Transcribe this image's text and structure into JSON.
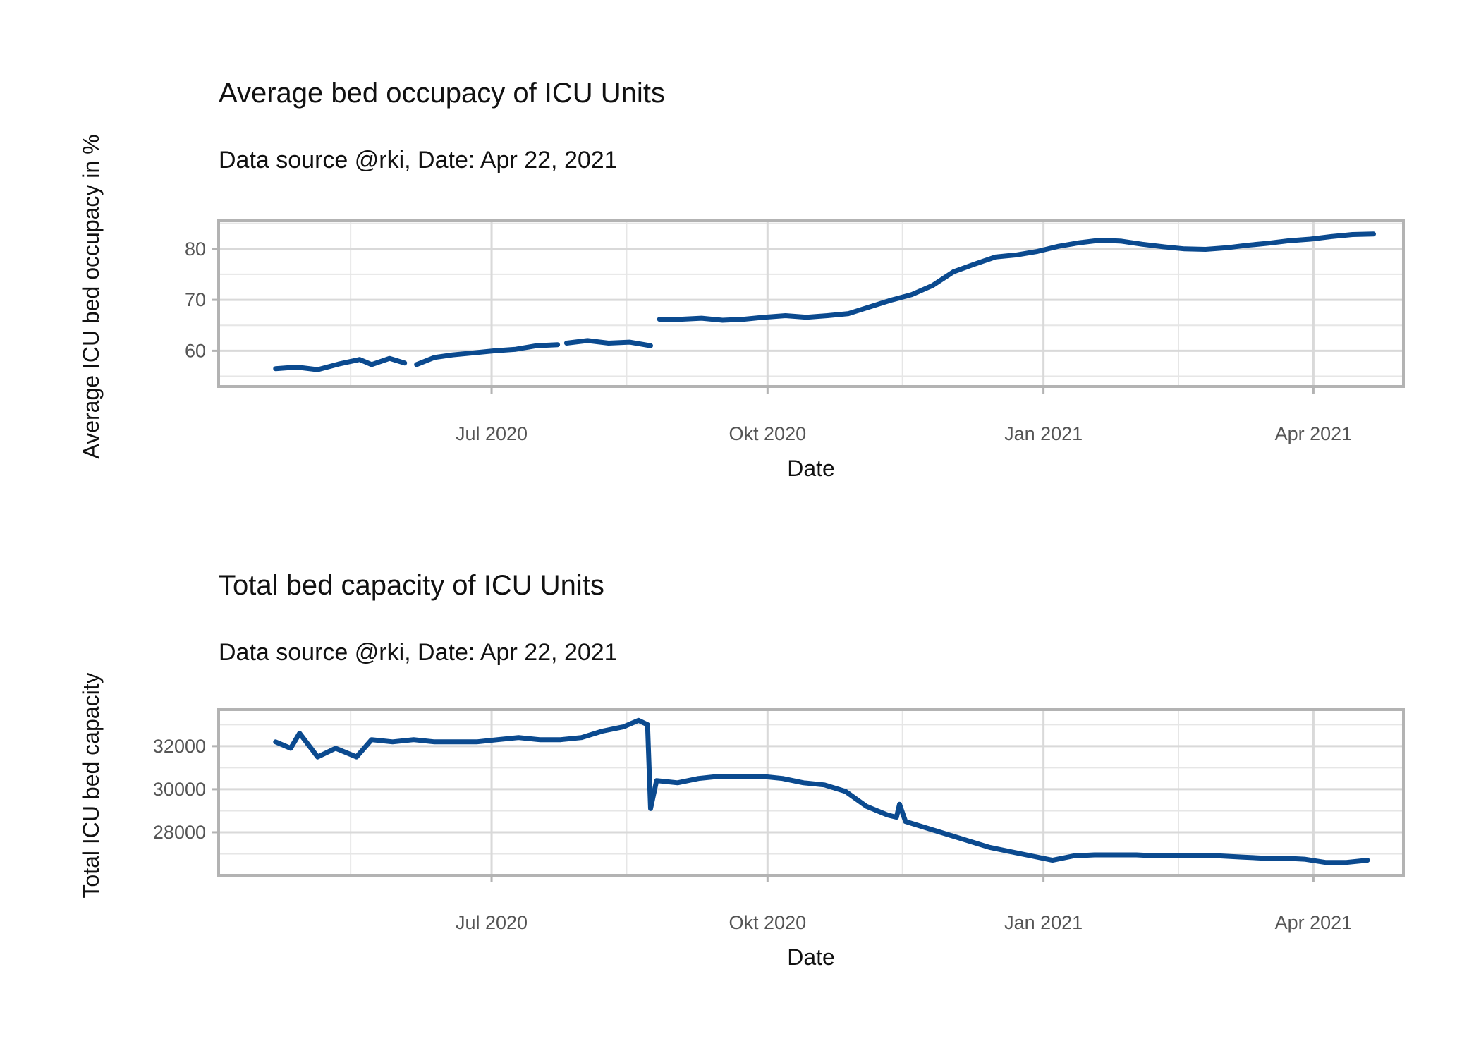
{
  "line_color": "#0b4a8f",
  "chart_data": [
    {
      "type": "line",
      "title": "Average bed occupacy of ICU Units",
      "subtitle": "Data source @rki, Date: Apr 22, 2021",
      "xlabel": "Date",
      "ylabel": "Average ICU bed occupacy in %",
      "x_ticks": [
        {
          "date": "2020-07-01",
          "label": "Jul 2020"
        },
        {
          "date": "2020-10-01",
          "label": "Okt 2020"
        },
        {
          "date": "2021-01-01",
          "label": "Jan 2021"
        },
        {
          "date": "2021-04-01",
          "label": "Apr 2021"
        }
      ],
      "x_minor_ticks": [
        "2020-05-15",
        "2020-08-15",
        "2020-11-15",
        "2021-02-15"
      ],
      "y_ticks": [
        60,
        70,
        80
      ],
      "xlim": [
        "2020-04-01",
        "2021-05-01"
      ],
      "ylim": [
        53,
        85.5
      ],
      "grid": true,
      "series": [
        {
          "segments": [
            [
              [
                "2020-04-20",
                56.5
              ],
              [
                "2020-04-27",
                56.8
              ],
              [
                "2020-05-04",
                56.3
              ],
              [
                "2020-05-11",
                57.4
              ],
              [
                "2020-05-18",
                58.3
              ],
              [
                "2020-05-22",
                57.3
              ],
              [
                "2020-05-28",
                58.5
              ],
              [
                "2020-06-02",
                57.6
              ]
            ],
            [
              [
                "2020-06-06",
                57.3
              ],
              [
                "2020-06-12",
                58.7
              ],
              [
                "2020-06-18",
                59.2
              ],
              [
                "2020-06-25",
                59.6
              ],
              [
                "2020-07-02",
                60.0
              ],
              [
                "2020-07-09",
                60.3
              ],
              [
                "2020-07-16",
                61.0
              ],
              [
                "2020-07-23",
                61.2
              ]
            ],
            [
              [
                "2020-07-26",
                61.5
              ],
              [
                "2020-08-02",
                62.0
              ],
              [
                "2020-08-09",
                61.5
              ],
              [
                "2020-08-16",
                61.7
              ],
              [
                "2020-08-23",
                61.0
              ]
            ],
            [
              [
                "2020-08-26",
                66.2
              ],
              [
                "2020-09-02",
                66.2
              ],
              [
                "2020-09-09",
                66.4
              ],
              [
                "2020-09-16",
                66.0
              ],
              [
                "2020-09-23",
                66.2
              ],
              [
                "2020-09-30",
                66.6
              ],
              [
                "2020-10-07",
                66.9
              ],
              [
                "2020-10-14",
                66.6
              ],
              [
                "2020-10-21",
                66.9
              ],
              [
                "2020-10-28",
                67.3
              ],
              [
                "2020-11-04",
                68.6
              ],
              [
                "2020-11-11",
                69.9
              ],
              [
                "2020-11-18",
                71.0
              ],
              [
                "2020-11-25",
                72.8
              ],
              [
                "2020-12-02",
                75.5
              ],
              [
                "2020-12-09",
                77.0
              ],
              [
                "2020-12-16",
                78.4
              ],
              [
                "2020-12-23",
                78.8
              ],
              [
                "2020-12-30",
                79.5
              ],
              [
                "2021-01-06",
                80.5
              ],
              [
                "2021-01-13",
                81.2
              ],
              [
                "2021-01-20",
                81.7
              ],
              [
                "2021-01-27",
                81.5
              ],
              [
                "2021-02-03",
                80.9
              ],
              [
                "2021-02-10",
                80.4
              ],
              [
                "2021-02-17",
                80.0
              ],
              [
                "2021-02-24",
                79.9
              ],
              [
                "2021-03-03",
                80.2
              ],
              [
                "2021-03-10",
                80.7
              ],
              [
                "2021-03-17",
                81.1
              ],
              [
                "2021-03-24",
                81.6
              ],
              [
                "2021-03-31",
                81.9
              ],
              [
                "2021-04-07",
                82.4
              ],
              [
                "2021-04-14",
                82.8
              ],
              [
                "2021-04-21",
                82.9
              ]
            ]
          ]
        }
      ]
    },
    {
      "type": "line",
      "title": "Total bed capacity of ICU Units",
      "subtitle": "Data source @rki, Date: Apr 22, 2021",
      "xlabel": "Date",
      "ylabel": "Total ICU bed capacity",
      "x_ticks": [
        {
          "date": "2020-07-01",
          "label": "Jul 2020"
        },
        {
          "date": "2020-10-01",
          "label": "Okt 2020"
        },
        {
          "date": "2021-01-01",
          "label": "Jan 2021"
        },
        {
          "date": "2021-04-01",
          "label": "Apr 2021"
        }
      ],
      "x_minor_ticks": [
        "2020-05-15",
        "2020-08-15",
        "2020-11-15",
        "2021-02-15"
      ],
      "y_ticks": [
        28000,
        30000,
        32000
      ],
      "xlim": [
        "2020-04-01",
        "2021-05-01"
      ],
      "ylim": [
        26000,
        33700
      ],
      "grid": true,
      "series": [
        {
          "segments": [
            [
              [
                "2020-04-20",
                32200
              ],
              [
                "2020-04-25",
                31900
              ],
              [
                "2020-04-28",
                32600
              ],
              [
                "2020-05-04",
                31500
              ],
              [
                "2020-05-10",
                31900
              ],
              [
                "2020-05-17",
                31500
              ],
              [
                "2020-05-22",
                32300
              ],
              [
                "2020-05-29",
                32200
              ],
              [
                "2020-06-05",
                32300
              ],
              [
                "2020-06-12",
                32200
              ],
              [
                "2020-06-19",
                32200
              ],
              [
                "2020-06-26",
                32200
              ],
              [
                "2020-07-03",
                32300
              ],
              [
                "2020-07-10",
                32400
              ],
              [
                "2020-07-17",
                32300
              ],
              [
                "2020-07-24",
                32300
              ],
              [
                "2020-07-31",
                32400
              ],
              [
                "2020-08-07",
                32700
              ],
              [
                "2020-08-14",
                32900
              ],
              [
                "2020-08-19",
                33200
              ],
              [
                "2020-08-22",
                33000
              ],
              [
                "2020-08-23",
                29100
              ],
              [
                "2020-08-25",
                30400
              ],
              [
                "2020-09-01",
                30300
              ],
              [
                "2020-09-08",
                30500
              ],
              [
                "2020-09-15",
                30600
              ],
              [
                "2020-09-22",
                30600
              ],
              [
                "2020-09-29",
                30600
              ],
              [
                "2020-10-06",
                30500
              ],
              [
                "2020-10-13",
                30300
              ],
              [
                "2020-10-20",
                30200
              ],
              [
                "2020-10-27",
                29900
              ],
              [
                "2020-11-03",
                29200
              ],
              [
                "2020-11-10",
                28800
              ],
              [
                "2020-11-13",
                28700
              ],
              [
                "2020-11-14",
                29300
              ],
              [
                "2020-11-16",
                28500
              ],
              [
                "2020-11-23",
                28200
              ],
              [
                "2020-11-30",
                27900
              ],
              [
                "2020-12-07",
                27600
              ],
              [
                "2020-12-14",
                27300
              ],
              [
                "2020-12-21",
                27100
              ],
              [
                "2020-12-28",
                26900
              ],
              [
                "2021-01-04",
                26700
              ],
              [
                "2021-01-11",
                26900
              ],
              [
                "2021-01-18",
                26950
              ],
              [
                "2021-01-25",
                26950
              ],
              [
                "2021-02-01",
                26950
              ],
              [
                "2021-02-08",
                26900
              ],
              [
                "2021-02-15",
                26900
              ],
              [
                "2021-02-22",
                26900
              ],
              [
                "2021-03-01",
                26900
              ],
              [
                "2021-03-08",
                26850
              ],
              [
                "2021-03-15",
                26800
              ],
              [
                "2021-03-22",
                26800
              ],
              [
                "2021-03-29",
                26750
              ],
              [
                "2021-04-05",
                26600
              ],
              [
                "2021-04-12",
                26600
              ],
              [
                "2021-04-19",
                26700
              ]
            ]
          ]
        }
      ]
    }
  ]
}
